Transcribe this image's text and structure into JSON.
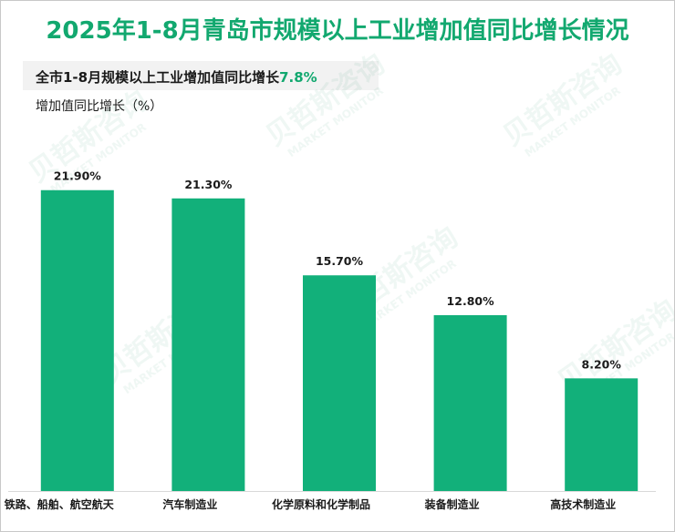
{
  "title": "2025年1-8月青岛市规模以上工业增加值同比增长情况",
  "subtitle_prefix": "全市1-8月规模以上工业增加值同比增长",
  "subtitle_value": "7.8%",
  "ylabel": "增加值同比增长（%）",
  "watermark": {
    "cn": "贝哲斯咨询",
    "en": "MARKET MONITOR"
  },
  "colors": {
    "bar": "#12b07a",
    "title": "#12a86f",
    "text": "#1a1a1a"
  },
  "chart_data": {
    "type": "bar",
    "categories": [
      "铁路、船舶、航空航天",
      "汽车制造业",
      "化学原料和化学制品",
      "装备制造业",
      "高技术制造业"
    ],
    "values": [
      21.9,
      21.3,
      15.7,
      12.8,
      8.2
    ],
    "value_labels": [
      "21.90%",
      "21.30%",
      "15.70%",
      "12.80%",
      "8.20%"
    ],
    "ylim": [
      0,
      25
    ],
    "grid": false,
    "legend": "none"
  }
}
